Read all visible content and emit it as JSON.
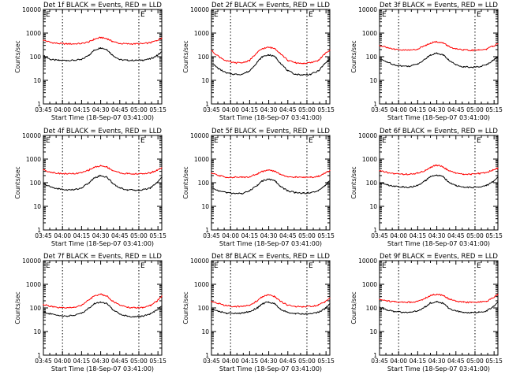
{
  "figure": {
    "xlabel": "Start Time (18-Sep-07 03:41:00)",
    "ylabel": "Counts/sec",
    "x_tick_labels": [
      "03:45",
      "04:00",
      "04:15",
      "04:30",
      "04:45",
      "05:00",
      "05:15"
    ],
    "y_tick_labels": [
      "1",
      "10",
      "100",
      "1000",
      "10000"
    ],
    "marker_letters": [
      "E",
      "E"
    ],
    "colors": {
      "black_series": "#000000",
      "red_series": "#ff0000",
      "axes": "#000000"
    }
  },
  "chart_data": [
    {
      "type": "line",
      "title": "Det 1f BLACK = Events, RED = LLD",
      "x_unit": "minutes after 03:41:00",
      "xlim": [
        4,
        97
      ],
      "ylim": [
        1,
        10000
      ],
      "log_y": true,
      "grid": false,
      "dashed_vlines": [
        19,
        79
      ],
      "series": [
        {
          "name": "Events",
          "color": "#000000",
          "x": [
            4,
            10,
            16,
            22,
            28,
            34,
            40,
            44,
            49,
            54,
            58,
            64,
            70,
            76,
            82,
            88,
            93,
            97
          ],
          "values": [
            110,
            75,
            70,
            70,
            70,
            75,
            120,
            190,
            240,
            200,
            120,
            75,
            70,
            70,
            72,
            80,
            110,
            160
          ]
        },
        {
          "name": "LLD",
          "color": "#ff0000",
          "x": [
            4,
            10,
            16,
            22,
            28,
            34,
            40,
            44,
            49,
            54,
            58,
            64,
            70,
            76,
            82,
            88,
            93,
            97
          ],
          "values": [
            500,
            400,
            360,
            350,
            350,
            360,
            430,
            550,
            650,
            580,
            450,
            360,
            350,
            350,
            355,
            390,
            480,
            620
          ]
        }
      ]
    },
    {
      "type": "line",
      "title": "Det 2f BLACK = Events, RED = LLD",
      "x_unit": "minutes after 03:41:00",
      "xlim": [
        4,
        97
      ],
      "ylim": [
        1,
        10000
      ],
      "log_y": true,
      "grid": false,
      "dashed_vlines": [
        19,
        79
      ],
      "series": [
        {
          "name": "Events",
          "color": "#000000",
          "x": [
            4,
            10,
            16,
            22,
            28,
            34,
            40,
            44,
            49,
            54,
            58,
            64,
            70,
            76,
            82,
            88,
            93,
            97
          ],
          "values": [
            55,
            30,
            20,
            18,
            18,
            25,
            60,
            100,
            120,
            100,
            55,
            25,
            18,
            17,
            18,
            25,
            50,
            80
          ]
        },
        {
          "name": "LLD",
          "color": "#ff0000",
          "x": [
            4,
            10,
            16,
            22,
            28,
            34,
            40,
            44,
            49,
            54,
            58,
            64,
            70,
            76,
            82,
            88,
            93,
            97
          ],
          "values": [
            180,
            100,
            65,
            55,
            55,
            70,
            150,
            220,
            250,
            220,
            140,
            70,
            55,
            52,
            55,
            70,
            130,
            190
          ]
        }
      ]
    },
    {
      "type": "line",
      "title": "Det 3f BLACK = Events, RED = LLD",
      "x_unit": "minutes after 03:41:00",
      "xlim": [
        4,
        97
      ],
      "ylim": [
        1,
        10000
      ],
      "log_y": true,
      "grid": false,
      "dashed_vlines": [
        19,
        79
      ],
      "series": [
        {
          "name": "Events",
          "color": "#000000",
          "x": [
            4,
            10,
            16,
            22,
            28,
            34,
            40,
            44,
            49,
            54,
            58,
            64,
            70,
            76,
            82,
            88,
            93,
            97
          ],
          "values": [
            80,
            60,
            45,
            40,
            40,
            50,
            80,
            120,
            140,
            120,
            75,
            45,
            38,
            36,
            37,
            45,
            70,
            100
          ]
        },
        {
          "name": "LLD",
          "color": "#ff0000",
          "x": [
            4,
            10,
            16,
            22,
            28,
            34,
            40,
            44,
            49,
            54,
            58,
            64,
            70,
            76,
            82,
            88,
            93,
            97
          ],
          "values": [
            300,
            250,
            200,
            190,
            190,
            210,
            300,
            380,
            430,
            380,
            280,
            210,
            190,
            185,
            190,
            210,
            280,
            350
          ]
        }
      ]
    },
    {
      "type": "line",
      "title": "Det 4f BLACK = Events, RED = LLD",
      "x_unit": "minutes after 03:41:00",
      "xlim": [
        4,
        97
      ],
      "ylim": [
        1,
        10000
      ],
      "log_y": true,
      "grid": false,
      "dashed_vlines": [
        19,
        79
      ],
      "series": [
        {
          "name": "Events",
          "color": "#000000",
          "x": [
            4,
            10,
            16,
            22,
            28,
            34,
            40,
            44,
            49,
            54,
            58,
            64,
            70,
            76,
            82,
            88,
            93,
            97
          ],
          "values": [
            90,
            65,
            55,
            50,
            50,
            60,
            100,
            160,
            200,
            170,
            100,
            60,
            50,
            48,
            50,
            60,
            100,
            170
          ]
        },
        {
          "name": "LLD",
          "color": "#ff0000",
          "x": [
            4,
            10,
            16,
            22,
            28,
            34,
            40,
            44,
            49,
            54,
            58,
            64,
            70,
            76,
            82,
            88,
            93,
            97
          ],
          "values": [
            350,
            280,
            250,
            240,
            240,
            260,
            350,
            450,
            520,
            460,
            340,
            260,
            240,
            235,
            240,
            260,
            330,
            430
          ]
        }
      ]
    },
    {
      "type": "line",
      "title": "Det 5f BLACK = Events, RED = LLD",
      "x_unit": "minutes after 03:41:00",
      "xlim": [
        4,
        97
      ],
      "ylim": [
        1,
        10000
      ],
      "log_y": true,
      "grid": false,
      "dashed_vlines": [
        19,
        79
      ],
      "series": [
        {
          "name": "Events",
          "color": "#000000",
          "x": [
            4,
            10,
            16,
            22,
            28,
            34,
            40,
            44,
            49,
            54,
            58,
            64,
            70,
            76,
            82,
            88,
            93,
            97
          ],
          "values": [
            60,
            45,
            38,
            35,
            35,
            45,
            80,
            120,
            140,
            120,
            70,
            45,
            38,
            36,
            38,
            45,
            75,
            120
          ]
        },
        {
          "name": "LLD",
          "color": "#ff0000",
          "x": [
            4,
            10,
            16,
            22,
            28,
            34,
            40,
            44,
            49,
            54,
            58,
            64,
            70,
            76,
            82,
            88,
            93,
            97
          ],
          "values": [
            250,
            200,
            170,
            170,
            170,
            180,
            240,
            300,
            340,
            300,
            230,
            180,
            170,
            170,
            170,
            185,
            250,
            330
          ]
        }
      ]
    },
    {
      "type": "line",
      "title": "Det 6f BLACK = Events, RED = LLD",
      "x_unit": "minutes after 03:41:00",
      "xlim": [
        4,
        97
      ],
      "ylim": [
        1,
        10000
      ],
      "log_y": true,
      "grid": false,
      "dashed_vlines": [
        19,
        79
      ],
      "series": [
        {
          "name": "Events",
          "color": "#000000",
          "x": [
            4,
            10,
            16,
            22,
            28,
            34,
            40,
            44,
            49,
            54,
            58,
            64,
            70,
            76,
            82,
            88,
            93,
            97
          ],
          "values": [
            100,
            80,
            70,
            65,
            65,
            75,
            120,
            180,
            210,
            180,
            110,
            75,
            65,
            62,
            65,
            75,
            110,
            170
          ]
        },
        {
          "name": "LLD",
          "color": "#ff0000",
          "x": [
            4,
            10,
            16,
            22,
            28,
            34,
            40,
            44,
            49,
            54,
            58,
            64,
            70,
            76,
            82,
            88,
            93,
            97
          ],
          "values": [
            320,
            270,
            240,
            230,
            230,
            250,
            330,
            450,
            560,
            470,
            330,
            250,
            230,
            230,
            240,
            270,
            340,
            420
          ]
        }
      ]
    },
    {
      "type": "line",
      "title": "Det 7f BLACK = Events, RED = LLD",
      "x_unit": "minutes after 03:41:00",
      "xlim": [
        4,
        97
      ],
      "ylim": [
        1,
        10000
      ],
      "log_y": true,
      "grid": false,
      "dashed_vlines": [
        19,
        79
      ],
      "series": [
        {
          "name": "Events",
          "color": "#000000",
          "x": [
            4,
            10,
            16,
            22,
            28,
            34,
            40,
            44,
            49,
            54,
            58,
            64,
            70,
            76,
            82,
            88,
            93,
            97
          ],
          "values": [
            65,
            55,
            48,
            45,
            48,
            60,
            100,
            150,
            180,
            150,
            90,
            55,
            45,
            42,
            45,
            55,
            80,
            120
          ]
        },
        {
          "name": "LLD",
          "color": "#ff0000",
          "x": [
            4,
            10,
            16,
            22,
            28,
            34,
            40,
            44,
            49,
            54,
            58,
            64,
            70,
            76,
            82,
            88,
            93,
            97
          ],
          "values": [
            140,
            115,
            100,
            100,
            105,
            130,
            220,
            320,
            380,
            320,
            200,
            130,
            105,
            100,
            105,
            125,
            190,
            320
          ]
        }
      ]
    },
    {
      "type": "line",
      "title": "Det 8f BLACK = Events, RED = LLD",
      "x_unit": "minutes after 03:41:00",
      "xlim": [
        4,
        97
      ],
      "ylim": [
        1,
        10000
      ],
      "log_y": true,
      "grid": false,
      "dashed_vlines": [
        19,
        79
      ],
      "series": [
        {
          "name": "Events",
          "color": "#000000",
          "x": [
            4,
            10,
            16,
            22,
            28,
            34,
            40,
            44,
            49,
            54,
            58,
            64,
            70,
            76,
            82,
            88,
            93,
            97
          ],
          "values": [
            90,
            70,
            60,
            58,
            60,
            70,
            100,
            150,
            180,
            150,
            90,
            65,
            58,
            55,
            58,
            65,
            90,
            150
          ]
        },
        {
          "name": "LLD",
          "color": "#ff0000",
          "x": [
            4,
            10,
            16,
            22,
            28,
            34,
            40,
            44,
            49,
            54,
            58,
            64,
            70,
            76,
            82,
            88,
            93,
            97
          ],
          "values": [
            190,
            150,
            125,
            115,
            115,
            130,
            200,
            300,
            360,
            300,
            190,
            130,
            115,
            110,
            115,
            130,
            180,
            260
          ]
        }
      ]
    },
    {
      "type": "line",
      "title": "Det 9f BLACK = Events, RED = LLD",
      "x_unit": "minutes after 03:41:00",
      "xlim": [
        4,
        97
      ],
      "ylim": [
        1,
        10000
      ],
      "log_y": true,
      "grid": false,
      "dashed_vlines": [
        19,
        79
      ],
      "series": [
        {
          "name": "Events",
          "color": "#000000",
          "x": [
            4,
            10,
            16,
            22,
            28,
            34,
            40,
            44,
            49,
            54,
            58,
            64,
            70,
            76,
            82,
            88,
            93,
            97
          ],
          "values": [
            110,
            80,
            70,
            65,
            65,
            75,
            110,
            160,
            180,
            160,
            100,
            75,
            65,
            62,
            65,
            75,
            110,
            180
          ]
        },
        {
          "name": "LLD",
          "color": "#ff0000",
          "x": [
            4,
            10,
            16,
            22,
            28,
            34,
            40,
            44,
            49,
            54,
            58,
            64,
            70,
            76,
            82,
            88,
            93,
            97
          ],
          "values": [
            230,
            200,
            180,
            175,
            175,
            190,
            260,
            340,
            380,
            340,
            250,
            190,
            175,
            170,
            175,
            190,
            260,
            380
          ]
        }
      ]
    }
  ]
}
